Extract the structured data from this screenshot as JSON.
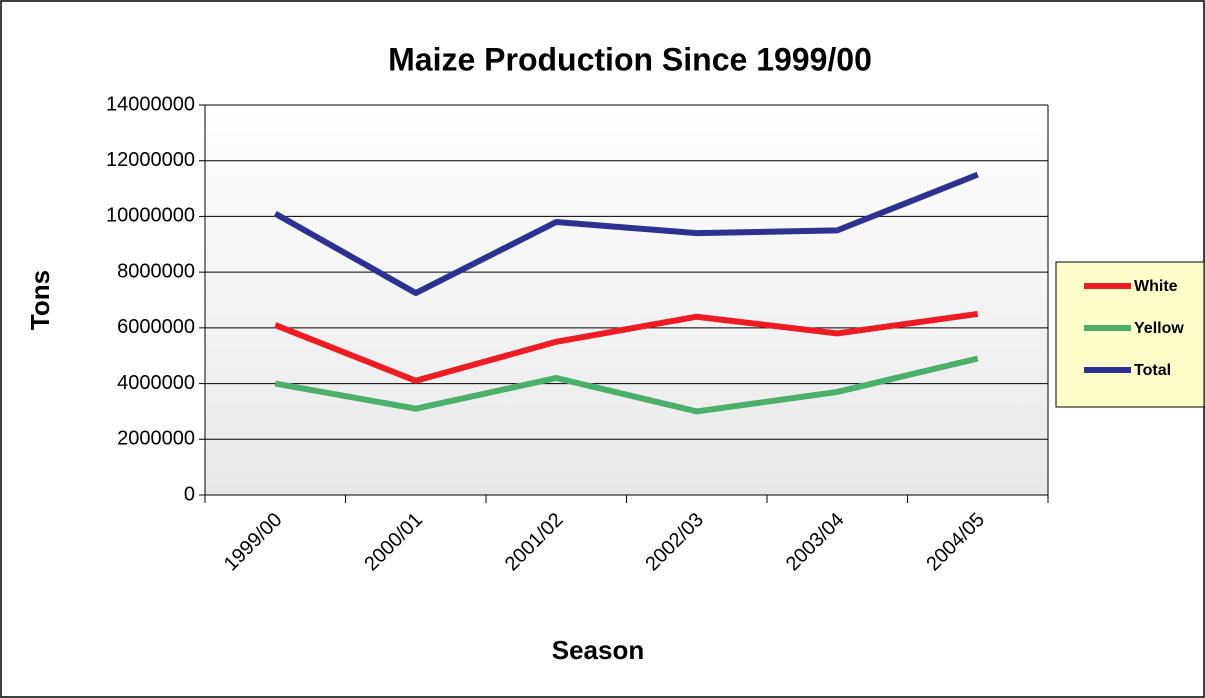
{
  "chart_data": {
    "type": "line",
    "title": "Maize Production Since 1999/00",
    "x_label": "Season",
    "y_label": "Tons",
    "categories": [
      "1999/00",
      "2000/01",
      "2001/02",
      "2002/03",
      "2003/04",
      "2004/05"
    ],
    "series": [
      {
        "name": "White",
        "color": "#ed1c24",
        "values": [
          6100000,
          4100000,
          5500000,
          6400000,
          5800000,
          6500000
        ]
      },
      {
        "name": "Yellow",
        "color": "#4caf6a",
        "values": [
          4000000,
          3100000,
          4200000,
          3000000,
          3700000,
          4900000
        ]
      },
      {
        "name": "Total",
        "color": "#2e3192",
        "values": [
          10100000,
          7250000,
          9800000,
          9400000,
          9500000,
          11500000
        ]
      }
    ],
    "ylim": [
      0,
      14000000
    ],
    "yticks": [
      0,
      2000000,
      4000000,
      6000000,
      8000000,
      10000000,
      12000000,
      14000000
    ],
    "grid": true,
    "legend": "right"
  }
}
